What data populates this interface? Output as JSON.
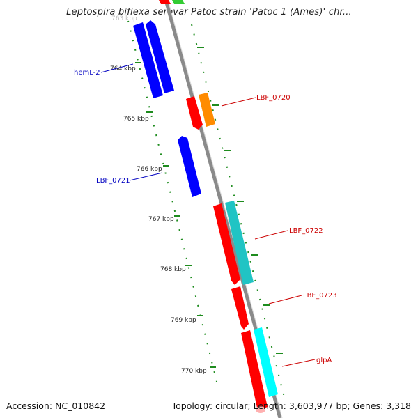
{
  "title": "Leptospira biflexa serovar Patoc strain 'Patoc 1 (Ames)' chr...",
  "footer": {
    "accession": "Accession: NC_010842",
    "stats": "Topology: circular; Length: 3,603,977 bp; Genes: 3,318"
  },
  "colors": {
    "backbone": "#8a8a8a",
    "tick": "#1e8c1e",
    "label_blue": "#0000c0",
    "label_red": "#cc0000"
  },
  "kbp_ticks": [
    "763 kbp",
    "764 kbp",
    "765 kbp",
    "766 kbp",
    "767 kbp",
    "768 kbp",
    "769 kbp",
    "770 kbp"
  ],
  "gene_labels": [
    {
      "text": "hemL-2",
      "strand": "reverse"
    },
    {
      "text": "LBF_0720",
      "strand": "forward"
    },
    {
      "text": "LBF_0721",
      "strand": "reverse"
    },
    {
      "text": "LBF_0722",
      "strand": "forward"
    },
    {
      "text": "LBF_0723",
      "strand": "forward"
    },
    {
      "text": "glpA",
      "strand": "forward"
    }
  ]
}
